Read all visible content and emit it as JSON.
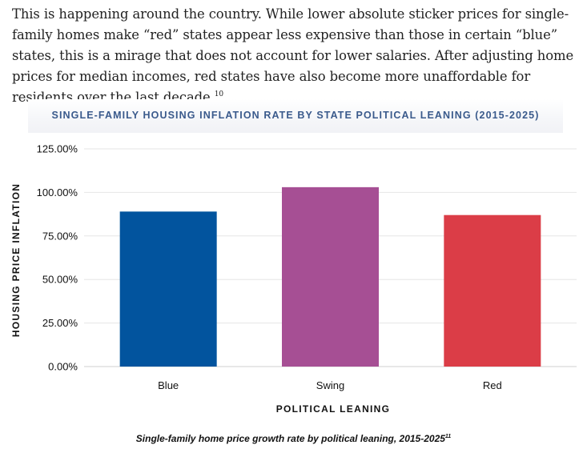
{
  "paragraph": {
    "text": "This is happening around the country. While lower absolute sticker prices for single-family homes make “red” states appear less expensive than those in certain “blue” states, this is a mirage that does not account for lower salaries. After adjusting home prices for median incomes, red states have also become more unaffordable for residents over the last decade.",
    "footnote": "10"
  },
  "caption": {
    "text": "Single-family home price growth rate by political leaning, 2015-2025",
    "footnote": "11"
  },
  "chart_data": {
    "type": "bar",
    "title": "SINGLE-FAMILY HOUSING INFLATION RATE BY STATE POLITICAL LEANING (2015-2025)",
    "xlabel": "POLITICAL LEANING",
    "ylabel": "HOUSING PRICE INFLATION",
    "categories": [
      "Blue",
      "Swing",
      "Red"
    ],
    "values": [
      89,
      103,
      87
    ],
    "colors": [
      "#02549e",
      "#a64f94",
      "#db3d47"
    ],
    "ylim": [
      0,
      125
    ],
    "yticks": [
      0,
      25,
      50,
      75,
      100,
      125
    ],
    "ytick_labels": [
      "0.00%",
      "25.00%",
      "50.00%",
      "75.00%",
      "100.00%",
      "125.00%"
    ],
    "grid": true,
    "legend": "none"
  }
}
